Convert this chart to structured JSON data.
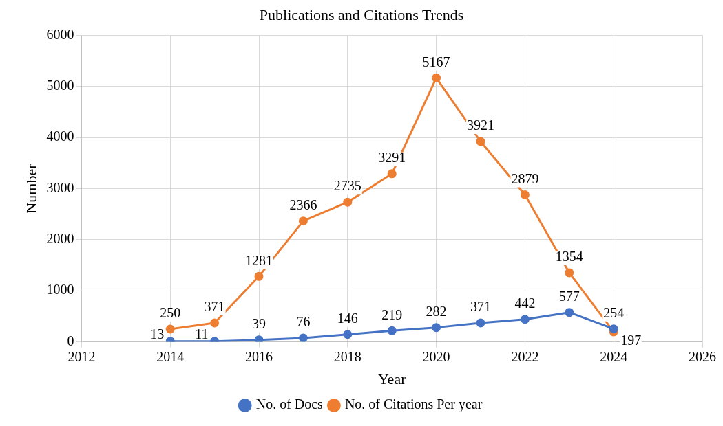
{
  "chart_data": {
    "type": "line",
    "title": "Publications and Citations Trends",
    "xlabel": "Year",
    "ylabel": "Number",
    "x": [
      2014,
      2015,
      2016,
      2017,
      2018,
      2019,
      2020,
      2021,
      2022,
      2023,
      2024
    ],
    "series": [
      {
        "name": "No. of Docs",
        "color": "#4472c4",
        "values": [
          13,
          11,
          39,
          76,
          146,
          219,
          282,
          371,
          442,
          577,
          254
        ]
      },
      {
        "name": "No. of Citations Per year",
        "color": "#ed7d31",
        "values": [
          250,
          371,
          1281,
          2366,
          2735,
          3291,
          5167,
          3921,
          2879,
          1354,
          197
        ]
      }
    ],
    "xlim": [
      2012,
      2026
    ],
    "xticks": [
      2012,
      2014,
      2016,
      2018,
      2020,
      2022,
      2024,
      2026
    ],
    "ylim": [
      0,
      6000
    ],
    "yticks": [
      0,
      1000,
      2000,
      3000,
      4000,
      5000,
      6000
    ],
    "grid": true,
    "legend": "bottom",
    "marker": "circle",
    "line_style": "solid",
    "data_labels": true
  }
}
